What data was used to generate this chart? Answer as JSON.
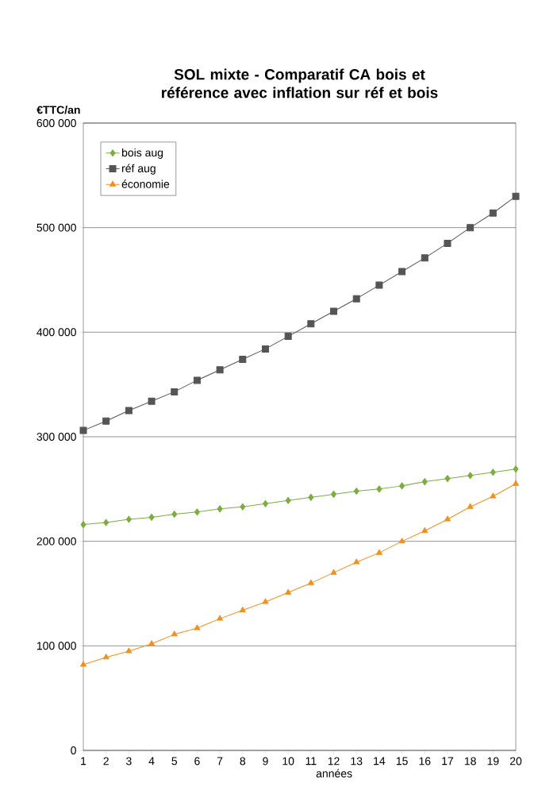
{
  "chart_data": {
    "type": "line",
    "title": "SOL mixte - Comparatif CA bois et référence avec inflation sur réf et bois",
    "xlabel": "années",
    "ylabel": "€TTC/an",
    "x": [
      1,
      2,
      3,
      4,
      5,
      6,
      7,
      8,
      9,
      10,
      11,
      12,
      13,
      14,
      15,
      16,
      17,
      18,
      19,
      20
    ],
    "xlim": [
      1,
      20
    ],
    "xticks": [
      {
        "value": 1,
        "label": "1"
      },
      {
        "value": 2,
        "label": "2"
      },
      {
        "value": 3,
        "label": "3"
      },
      {
        "value": 4,
        "label": "4"
      },
      {
        "value": 5,
        "label": "5"
      },
      {
        "value": 6,
        "label": "6"
      },
      {
        "value": 7,
        "label": "7"
      },
      {
        "value": 8,
        "label": "8"
      },
      {
        "value": 9,
        "label": "9"
      },
      {
        "value": 10,
        "label": "10"
      },
      {
        "value": 11,
        "label": "11"
      },
      {
        "value": 12,
        "label": "12"
      },
      {
        "value": 13,
        "label": "13"
      },
      {
        "value": 14,
        "label": "14"
      },
      {
        "value": 15,
        "label": "15"
      },
      {
        "value": 16,
        "label": "16"
      },
      {
        "value": 17,
        "label": "17"
      },
      {
        "value": 18,
        "label": "18"
      },
      {
        "value": 19,
        "label": "19"
      },
      {
        "value": 20,
        "label": "20"
      }
    ],
    "ylim": [
      0,
      600000
    ],
    "yticks": [
      {
        "value": 0,
        "label": "0"
      },
      {
        "value": 100000,
        "label": "100 000"
      },
      {
        "value": 200000,
        "label": "200 000"
      },
      {
        "value": 300000,
        "label": "300 000"
      },
      {
        "value": 400000,
        "label": "400 000"
      },
      {
        "value": 500000,
        "label": "500 000"
      },
      {
        "value": 600000,
        "label": "600 000"
      }
    ],
    "grid": "y",
    "legend": "top left",
    "line_style": "solid",
    "series": [
      {
        "name": "bois aug",
        "color": "#7cad3f",
        "marker": "diamond",
        "values": [
          216000,
          218000,
          221000,
          223000,
          226000,
          228000,
          231000,
          233000,
          236000,
          239000,
          242000,
          245000,
          248000,
          250000,
          253000,
          257000,
          260000,
          263000,
          266000,
          269000
        ]
      },
      {
        "name": "réf aug",
        "color": "#555555",
        "marker": "square",
        "values": [
          306000,
          315000,
          325000,
          334000,
          343000,
          354000,
          364000,
          374000,
          384000,
          396000,
          408000,
          420000,
          432000,
          445000,
          458000,
          471000,
          485000,
          500000,
          514000,
          530000
        ]
      },
      {
        "name": "économie",
        "color": "#f0901e",
        "marker": "triangle",
        "values": [
          82000,
          89000,
          95000,
          102000,
          111000,
          117000,
          126000,
          134000,
          142000,
          151000,
          160000,
          170000,
          180000,
          189000,
          200000,
          210000,
          221000,
          233000,
          243000,
          255000
        ]
      }
    ]
  }
}
